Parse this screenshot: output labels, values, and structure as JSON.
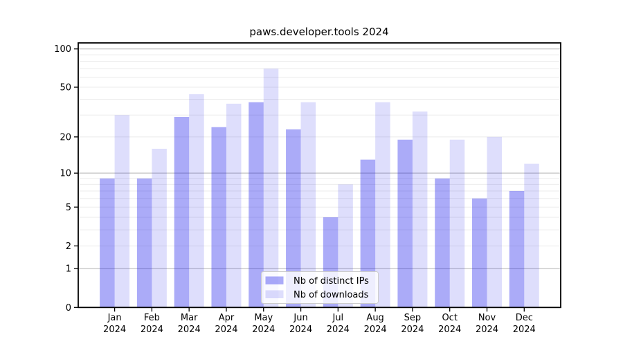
{
  "figure": {
    "title": "paws.developer.tools 2024"
  },
  "chart_data": {
    "type": "bar",
    "title": "paws.developer.tools 2024",
    "x_tick_months": [
      "Jan",
      "Feb",
      "Mar",
      "Apr",
      "May",
      "Jun",
      "Jul",
      "Aug",
      "Sep",
      "Oct",
      "Nov",
      "Dec"
    ],
    "x_tick_year": "2024",
    "series": [
      {
        "name": "Nb of distinct IPs",
        "values": [
          9,
          9,
          29,
          24,
          38,
          23,
          4,
          13,
          19,
          9,
          6,
          7
        ],
        "opacity": 0.34
      },
      {
        "name": "Nb of downloads",
        "values": [
          30,
          16,
          44,
          37,
          70,
          38,
          8,
          38,
          32,
          19,
          20,
          12
        ],
        "opacity": 0.135
      }
    ],
    "yscale": "log10(value+1)",
    "y_tick_values": [
      0,
      1,
      2,
      5,
      10,
      20,
      50,
      100
    ],
    "y_minor_gridlines": [
      2,
      3,
      4,
      5,
      6,
      7,
      8,
      9,
      20,
      30,
      40,
      50,
      60,
      70,
      80,
      90
    ],
    "y_major_gridlines": [
      1,
      10,
      100
    ],
    "ylim": [
      0,
      111
    ],
    "grid": true,
    "legend": {
      "position": "lower-center-inside",
      "items": [
        "Nb of distinct IPs",
        "Nb of downloads"
      ]
    }
  },
  "colors": {
    "bar_base": "#0a0aeb",
    "grid_minor": "#ebebeb",
    "grid_major": "#b3b3b3",
    "axis": "#000000",
    "legend_border": "#cccccc",
    "background": "#ffffff"
  }
}
